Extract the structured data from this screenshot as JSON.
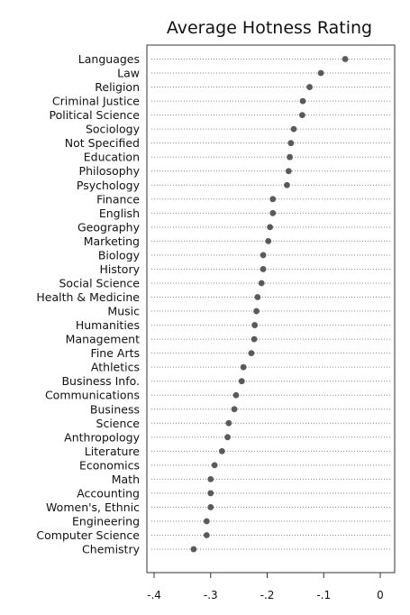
{
  "chart_data": {
    "type": "scatter",
    "title": "Average Hotness Rating",
    "xlabel": "",
    "ylabel": "",
    "xlim": [
      -0.42,
      0.02
    ],
    "grid": "dotted horizontal guide lines per category",
    "colors": {
      "point": "#5a5a5a",
      "highlight": "#e8202a",
      "text": "#111111",
      "guide": "#8a8a8a"
    },
    "highlight_category": "Political Science",
    "x_ticks": [
      {
        "value": -0.4,
        "label": "-.4"
      },
      {
        "value": -0.3,
        "label": "-.3"
      },
      {
        "value": -0.2,
        "label": "-.2"
      },
      {
        "value": -0.1,
        "label": "-.1"
      },
      {
        "value": 0,
        "label": "0"
      }
    ],
    "categories": [
      "Languages",
      "Law",
      "Religion",
      "Criminal Justice",
      "Political Science",
      "Sociology",
      "Not Specified",
      "Education",
      "Philosophy",
      "Psychology",
      "Finance",
      "English",
      "Geography",
      "Marketing",
      "Biology",
      "History",
      "Social Science",
      "Health & Medicine",
      "Music",
      "Humanities",
      "Management",
      "Fine Arts",
      "Athletics",
      "Business Info.",
      "Communications",
      "Business",
      "Science",
      "Anthropology",
      "Literature",
      "Economics",
      "Math",
      "Accounting",
      "Women's, Ethnic",
      "Engineering",
      "Computer Science",
      "Chemistry"
    ],
    "values": [
      -0.062,
      -0.105,
      -0.125,
      -0.137,
      -0.138,
      -0.153,
      -0.158,
      -0.16,
      -0.162,
      -0.165,
      -0.19,
      -0.19,
      -0.195,
      -0.198,
      -0.207,
      -0.207,
      -0.21,
      -0.217,
      -0.219,
      -0.222,
      -0.223,
      -0.228,
      -0.242,
      -0.245,
      -0.255,
      -0.258,
      -0.268,
      -0.27,
      -0.28,
      -0.293,
      -0.3,
      -0.3,
      -0.3,
      -0.307,
      -0.307,
      -0.33
    ]
  }
}
